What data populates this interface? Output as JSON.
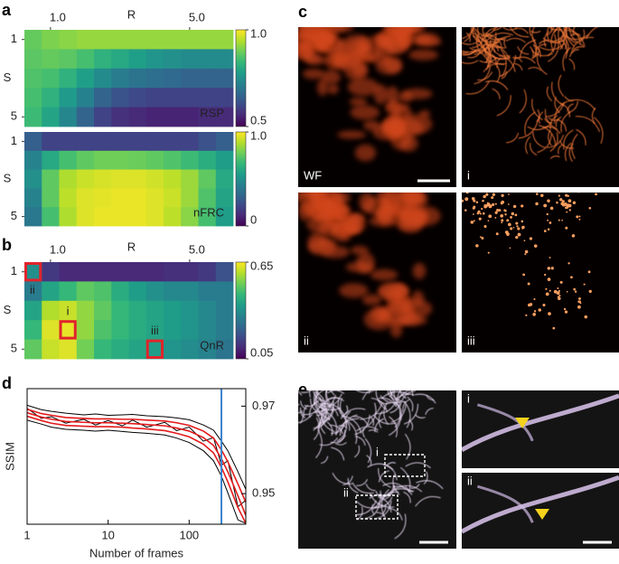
{
  "panel_labels": [
    "a",
    "b",
    "c",
    "d",
    "e"
  ],
  "chart_data": [
    {
      "type": "heatmap",
      "x_label": "R",
      "y_label": "S",
      "annotation": "RSP",
      "x": [
        0.5,
        1.0,
        1.5,
        2.0,
        2.5,
        3.0,
        3.5,
        4.0,
        4.5,
        5.0,
        5.5,
        6.0
      ],
      "y": [
        1,
        2,
        3,
        4,
        5
      ],
      "xlim": [
        0.25,
        6.25
      ],
      "xticks": [
        {
          "value": 1,
          "label": "1.0"
        },
        {
          "value": 5,
          "label": "5.0"
        }
      ],
      "ylim": [
        0.5,
        5.5
      ],
      "yticks": [
        1,
        5
      ],
      "clim": [
        0.5,
        1
      ],
      "cticks": [
        {
          "value": 1,
          "label": "1.0"
        },
        0.5
      ],
      "values": [
        [
          0.88,
          0.9,
          0.91,
          0.92,
          0.92,
          0.92,
          0.92,
          0.92,
          0.92,
          0.92,
          0.92,
          0.92
        ],
        [
          0.87,
          0.88,
          0.87,
          0.85,
          0.82,
          0.8,
          0.78,
          0.76,
          0.75,
          0.74,
          0.74,
          0.74
        ],
        [
          0.86,
          0.85,
          0.82,
          0.78,
          0.74,
          0.71,
          0.69,
          0.68,
          0.67,
          0.66,
          0.66,
          0.66
        ],
        [
          0.85,
          0.82,
          0.77,
          0.72,
          0.66,
          0.63,
          0.61,
          0.6,
          0.6,
          0.6,
          0.6,
          0.6
        ],
        [
          0.84,
          0.79,
          0.73,
          0.66,
          0.6,
          0.57,
          0.56,
          0.55,
          0.55,
          0.55,
          0.56,
          0.56
        ]
      ]
    },
    {
      "type": "heatmap",
      "y_label": "S",
      "annotation": "nFRC",
      "x": [
        0.5,
        1.0,
        1.5,
        2.0,
        2.5,
        3.0,
        3.5,
        4.0,
        4.5,
        5.0,
        5.5,
        6.0
      ],
      "y": [
        1,
        2,
        3,
        4,
        5
      ],
      "xlim": [
        0.25,
        6.25
      ],
      "ylim": [
        0.5,
        5.5
      ],
      "yticks": [
        1,
        5
      ],
      "clim": [
        0,
        1
      ],
      "cticks": [
        {
          "value": 1,
          "label": "1.0"
        },
        0
      ],
      "values": [
        [
          0.3,
          0.2,
          0.2,
          0.2,
          0.2,
          0.2,
          0.2,
          0.2,
          0.2,
          0.2,
          0.25,
          0.3
        ],
        [
          0.45,
          0.6,
          0.7,
          0.75,
          0.78,
          0.78,
          0.77,
          0.75,
          0.72,
          0.68,
          0.62,
          0.55
        ],
        [
          0.5,
          0.75,
          0.88,
          0.92,
          0.94,
          0.95,
          0.95,
          0.93,
          0.9,
          0.85,
          0.75,
          0.6
        ],
        [
          0.45,
          0.75,
          0.9,
          0.95,
          0.96,
          0.97,
          0.97,
          0.95,
          0.92,
          0.85,
          0.72,
          0.58
        ],
        [
          0.4,
          0.7,
          0.88,
          0.95,
          0.97,
          0.97,
          0.97,
          0.95,
          0.9,
          0.82,
          0.7,
          0.55
        ]
      ]
    },
    {
      "type": "heatmap",
      "x_label": "R",
      "y_label": "S",
      "annotation": "QnR",
      "x": [
        0.5,
        1.0,
        1.5,
        2.0,
        2.5,
        3.0,
        3.5,
        4.0,
        4.5,
        5.0,
        5.5,
        6.0
      ],
      "y": [
        1,
        2,
        3,
        4,
        5
      ],
      "xlim": [
        0.25,
        6.25
      ],
      "xticks": [
        {
          "value": 1,
          "label": "1.0"
        },
        {
          "value": 5,
          "label": "5.0"
        }
      ],
      "ylim": [
        0.5,
        5.5
      ],
      "yticks": [
        1,
        5
      ],
      "clim": [
        0.05,
        0.65
      ],
      "cticks": [
        0.65,
        0.05
      ],
      "highlight_color": "#e0242b",
      "highlights": [
        {
          "x": 0.5,
          "y": 1,
          "label": "ii"
        },
        {
          "x": 1.5,
          "y": 4,
          "label": "i"
        },
        {
          "x": 4,
          "y": 5,
          "label": "iii"
        }
      ],
      "values": [
        [
          0.35,
          0.15,
          0.12,
          0.12,
          0.12,
          0.12,
          0.12,
          0.12,
          0.13,
          0.13,
          0.15,
          0.2
        ],
        [
          0.3,
          0.4,
          0.45,
          0.5,
          0.48,
          0.42,
          0.38,
          0.35,
          0.33,
          0.33,
          0.3,
          0.3
        ],
        [
          0.4,
          0.58,
          0.6,
          0.55,
          0.5,
          0.45,
          0.42,
          0.4,
          0.38,
          0.36,
          0.33,
          0.3
        ],
        [
          0.45,
          0.62,
          0.63,
          0.55,
          0.48,
          0.45,
          0.42,
          0.4,
          0.38,
          0.36,
          0.33,
          0.3
        ],
        [
          0.5,
          0.6,
          0.62,
          0.52,
          0.45,
          0.42,
          0.4,
          0.38,
          0.36,
          0.34,
          0.32,
          0.28
        ]
      ]
    },
    {
      "type": "line",
      "x_label": "Number of frames",
      "y_label": "SSIM",
      "log_x": true,
      "x": [
        1,
        1.5,
        2,
        3,
        5,
        7,
        10,
        15,
        20,
        30,
        50,
        70,
        100,
        150,
        200,
        250,
        300,
        400,
        500
      ],
      "xlim": [
        1,
        500
      ],
      "xticks": [
        1,
        10,
        100
      ],
      "ylim": [
        0.943,
        0.974
      ],
      "yticks": [
        0.97,
        0.95
      ],
      "vline": {
        "x": 250,
        "color": "#3b86d0"
      },
      "series": [
        {
          "color": "#000000",
          "values": [
            0.9702,
            0.9692,
            0.9688,
            0.9684,
            0.968,
            0.9682,
            0.9679,
            0.968,
            0.9681,
            0.9678,
            0.9676,
            0.9673,
            0.9669,
            0.9657,
            0.9645,
            0.962,
            0.9598,
            0.955,
            0.951
          ]
        },
        {
          "color": "#000000",
          "values": [
            0.9668,
            0.9659,
            0.9652,
            0.9647,
            0.9645,
            0.9643,
            0.9645,
            0.9642,
            0.964,
            0.9638,
            0.9634,
            0.9627,
            0.9617,
            0.9598,
            0.9575,
            0.954,
            0.9502,
            0.944,
            0.9432
          ]
        },
        {
          "color": "#000000",
          "values": [
            0.9695,
            0.9672,
            0.9676,
            0.9661,
            0.967,
            0.9657,
            0.9667,
            0.9655,
            0.9668,
            0.9652,
            0.9663,
            0.9644,
            0.9652,
            0.962,
            0.9628,
            0.9565,
            0.9575,
            0.947,
            0.9485
          ]
        },
        {
          "color": "#e41a1c",
          "values": [
            0.9693,
            0.9683,
            0.9679,
            0.9674,
            0.9672,
            0.9671,
            0.9671,
            0.967,
            0.967,
            0.9668,
            0.9666,
            0.9662,
            0.9656,
            0.9643,
            0.9627,
            0.96,
            0.9573,
            0.9522,
            0.948
          ]
        },
        {
          "color": "#e41a1c",
          "values": [
            0.9685,
            0.9675,
            0.967,
            0.9665,
            0.9663,
            0.9662,
            0.9662,
            0.9661,
            0.966,
            0.9658,
            0.9655,
            0.965,
            0.9643,
            0.9628,
            0.961,
            0.958,
            0.955,
            0.9495,
            0.945
          ]
        },
        {
          "color": "#e41a1c",
          "values": [
            0.9677,
            0.9667,
            0.9661,
            0.9656,
            0.9654,
            0.9653,
            0.9653,
            0.9652,
            0.965,
            0.9648,
            0.9644,
            0.9638,
            0.963,
            0.9613,
            0.9593,
            0.956,
            0.9527,
            0.9468,
            0.9432
          ]
        }
      ]
    }
  ],
  "images": {
    "c": [
      "WF",
      "i",
      "ii",
      "iii"
    ],
    "e_overview": [
      "i",
      "ii"
    ],
    "e_zoom": [
      "i",
      "ii"
    ]
  }
}
